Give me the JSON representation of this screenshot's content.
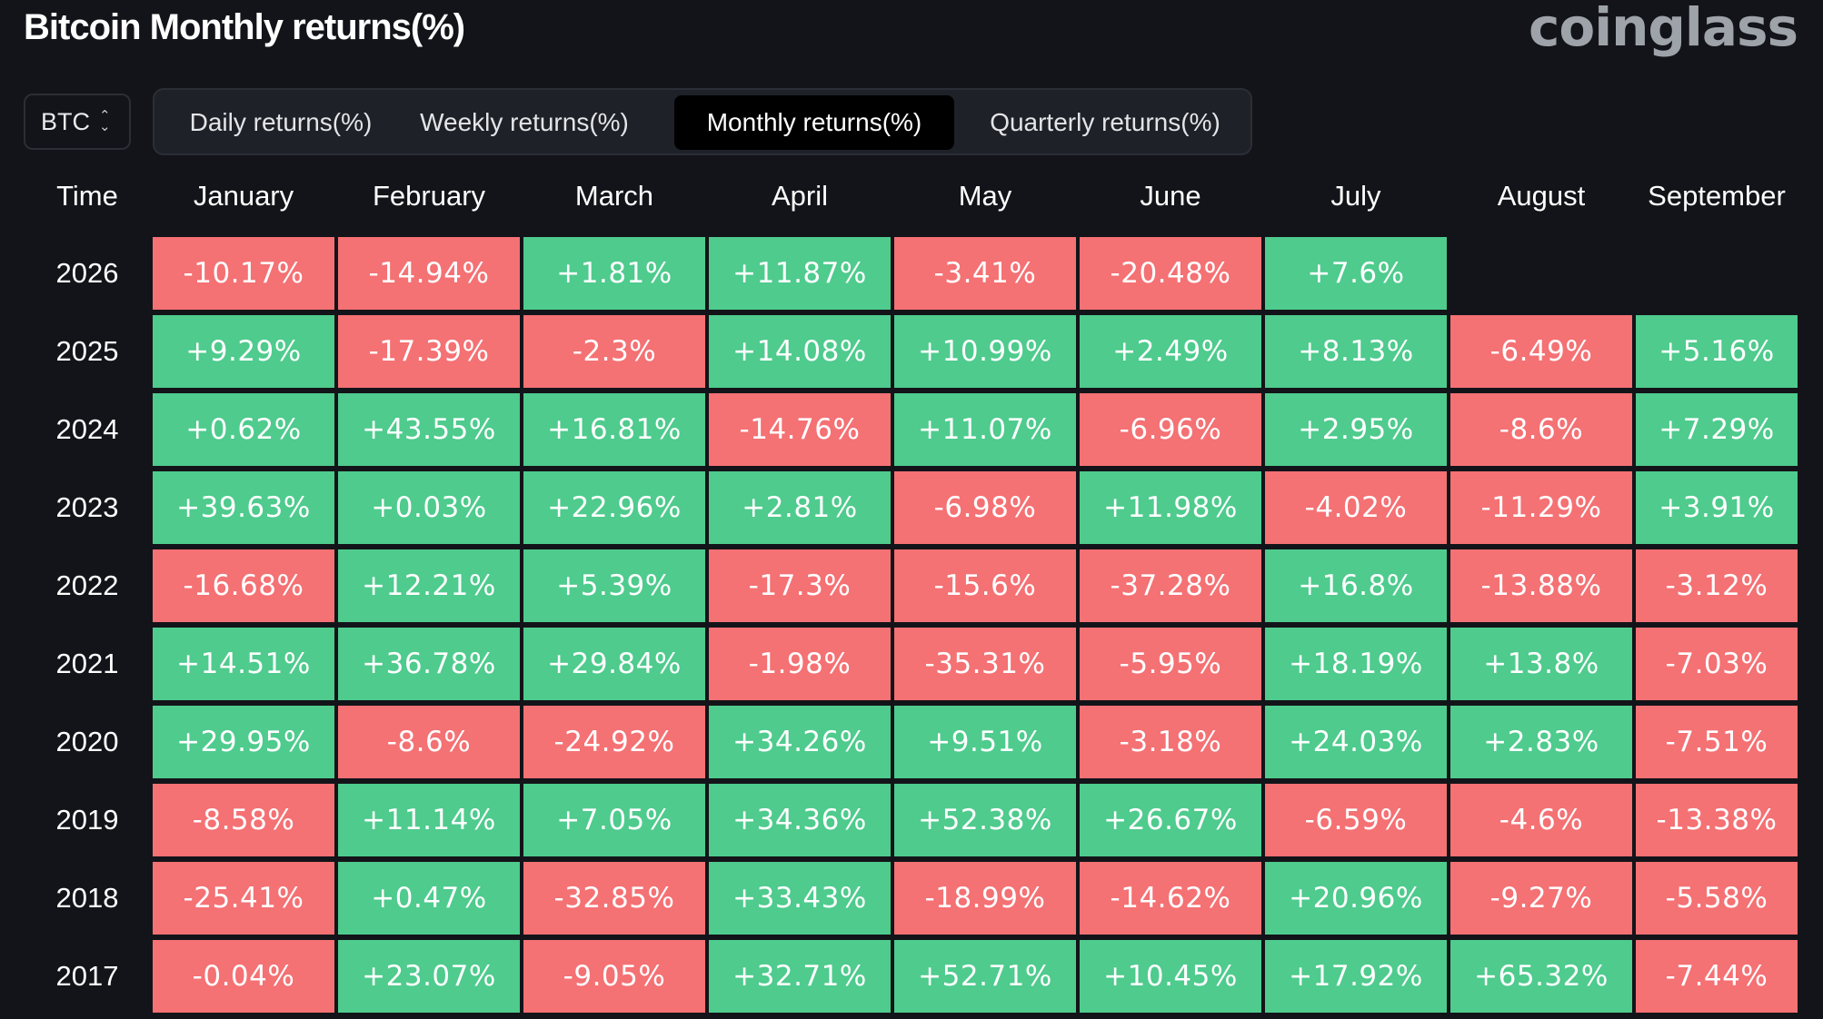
{
  "header": {
    "title": "Bitcoin Monthly returns(%)",
    "brand": "coinglass"
  },
  "coin_selector": {
    "value": "BTC"
  },
  "tabs": [
    {
      "label": "Daily returns(%)",
      "active": false
    },
    {
      "label": "Weekly returns(%)",
      "active": false
    },
    {
      "label": "Monthly returns(%)",
      "active": true
    },
    {
      "label": "Quarterly returns(%)",
      "active": false
    }
  ],
  "colors": {
    "positive": "#4ecb8d",
    "negative": "#f47174",
    "background": "#131419"
  },
  "table": {
    "time_header": "Time",
    "columns": [
      "January",
      "February",
      "March",
      "April",
      "May",
      "June",
      "July",
      "August",
      "September"
    ],
    "rows": [
      {
        "year": "2026",
        "values": [
          "-10.17%",
          "-14.94%",
          "+1.81%",
          "+11.87%",
          "-3.41%",
          "-20.48%",
          "+7.6%",
          "",
          ""
        ]
      },
      {
        "year": "2025",
        "values": [
          "+9.29%",
          "-17.39%",
          "-2.3%",
          "+14.08%",
          "+10.99%",
          "+2.49%",
          "+8.13%",
          "-6.49%",
          "+5.16%"
        ]
      },
      {
        "year": "2024",
        "values": [
          "+0.62%",
          "+43.55%",
          "+16.81%",
          "-14.76%",
          "+11.07%",
          "-6.96%",
          "+2.95%",
          "-8.6%",
          "+7.29%"
        ]
      },
      {
        "year": "2023",
        "values": [
          "+39.63%",
          "+0.03%",
          "+22.96%",
          "+2.81%",
          "-6.98%",
          "+11.98%",
          "-4.02%",
          "-11.29%",
          "+3.91%"
        ]
      },
      {
        "year": "2022",
        "values": [
          "-16.68%",
          "+12.21%",
          "+5.39%",
          "-17.3%",
          "-15.6%",
          "-37.28%",
          "+16.8%",
          "-13.88%",
          "-3.12%"
        ]
      },
      {
        "year": "2021",
        "values": [
          "+14.51%",
          "+36.78%",
          "+29.84%",
          "-1.98%",
          "-35.31%",
          "-5.95%",
          "+18.19%",
          "+13.8%",
          "-7.03%"
        ]
      },
      {
        "year": "2020",
        "values": [
          "+29.95%",
          "-8.6%",
          "-24.92%",
          "+34.26%",
          "+9.51%",
          "-3.18%",
          "+24.03%",
          "+2.83%",
          "-7.51%"
        ]
      },
      {
        "year": "2019",
        "values": [
          "-8.58%",
          "+11.14%",
          "+7.05%",
          "+34.36%",
          "+52.38%",
          "+26.67%",
          "-6.59%",
          "-4.6%",
          "-13.38%"
        ]
      },
      {
        "year": "2018",
        "values": [
          "-25.41%",
          "+0.47%",
          "-32.85%",
          "+33.43%",
          "-18.99%",
          "-14.62%",
          "+20.96%",
          "-9.27%",
          "-5.58%"
        ]
      },
      {
        "year": "2017",
        "values": [
          "-0.04%",
          "+23.07%",
          "-9.05%",
          "+32.71%",
          "+52.71%",
          "+10.45%",
          "+17.92%",
          "+65.32%",
          "-7.44%"
        ]
      }
    ]
  }
}
